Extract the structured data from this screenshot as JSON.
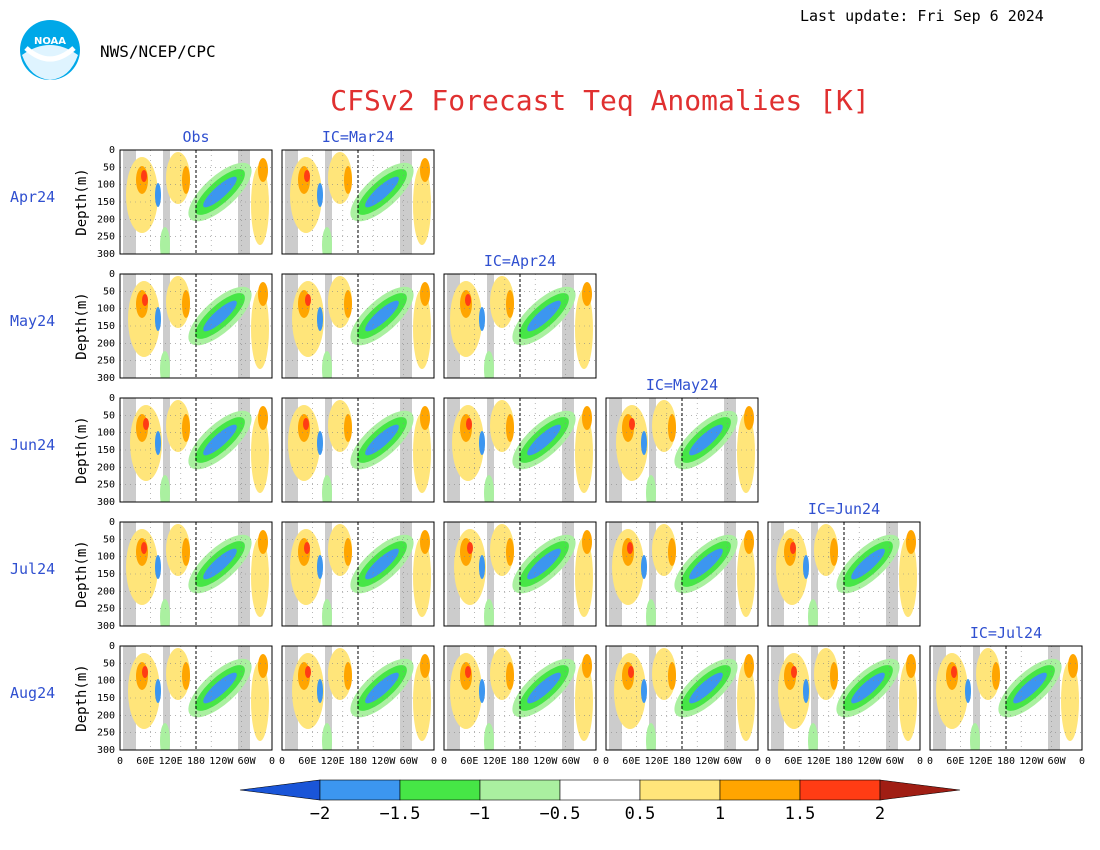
{
  "header": {
    "org": "NWS/NCEP/CPC",
    "last_update": "Last update: Fri Sep 6 2024",
    "title": "CFSv2 Forecast Teq Anomalies [K]",
    "logo_text": "NOAA"
  },
  "colors": {
    "title": "#e03030",
    "label": "#3050d0",
    "land": "#cccccc",
    "frame": "#000000"
  },
  "chart_data": {
    "type": "heatmap",
    "title": "CFSv2 Forecast Teq Anomalies [K]",
    "ylabel": "Depth(m)",
    "y_ticks": [
      "0",
      "50",
      "100",
      "150",
      "200",
      "250",
      "300"
    ],
    "ylim": [
      0,
      300
    ],
    "x_ticks": [
      "0",
      "60E",
      "120E",
      "180",
      "120W",
      "60W",
      "0"
    ],
    "xlim_deg": [
      0,
      360
    ],
    "columns": [
      "Obs",
      "IC=Mar24",
      "IC=Apr24",
      "IC=May24",
      "IC=Jun24",
      "IC=Jul24"
    ],
    "rows": [
      "Apr24",
      "May24",
      "Jun24",
      "Jul24",
      "Aug24"
    ],
    "colorbar": {
      "levels": [
        -2,
        -1.5,
        -1,
        -0.5,
        0.5,
        1,
        1.5,
        2
      ],
      "labels": [
        "−2",
        "−1.5",
        "−1",
        "−0.5",
        "0.5",
        "1",
        "1.5",
        "2"
      ],
      "colors": [
        "#1a55d8",
        "#3c96f0",
        "#46e646",
        "#aaf0a0",
        "#ffffff",
        "#ffe57a",
        "#ffa500",
        "#ff3c14",
        "#a01e14"
      ]
    },
    "grid": true
  }
}
